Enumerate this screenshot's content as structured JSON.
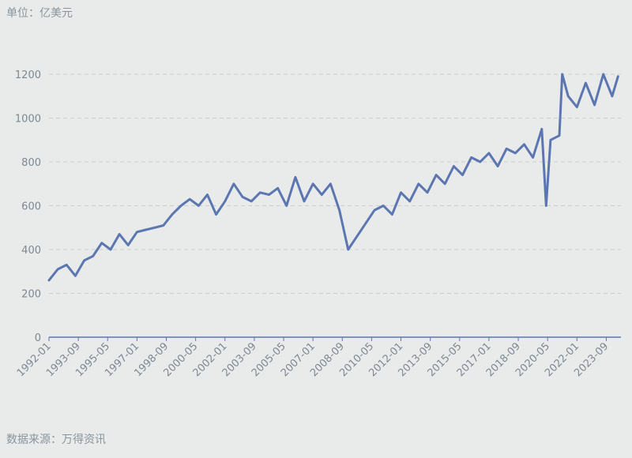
{
  "unit_label": "单位：亿美元",
  "source_label": "数据来源：万得资讯",
  "colors": {
    "line": "#5b76b0",
    "grid": "#c9cfd3",
    "axis": "#5b76b0",
    "text": "#7d8894",
    "background": "#e8ebe9"
  },
  "chart_data": {
    "type": "line",
    "title": "",
    "xlabel": "",
    "ylabel": "",
    "ylim": [
      0,
      1200
    ],
    "yticks": [
      0,
      200,
      400,
      600,
      800,
      1000,
      1200
    ],
    "xlim": [
      "1992-01",
      "2024-07"
    ],
    "xticks": [
      "1992-01",
      "1993-09",
      "1995-05",
      "1997-01",
      "1998-09",
      "2000-05",
      "2002-01",
      "2003-09",
      "2005-05",
      "2007-01",
      "2008-09",
      "2010-05",
      "2012-01",
      "2013-09",
      "2015-05",
      "2017-01",
      "2018-09",
      "2020-05",
      "2022-01",
      "2023-09"
    ],
    "grid": true,
    "series": [
      {
        "x": [
          "1992-01",
          "1992-07",
          "1993-01",
          "1993-07",
          "1994-01",
          "1994-07",
          "1995-01",
          "1995-07",
          "1996-01",
          "1996-07",
          "1997-01",
          "1997-07",
          "1998-01",
          "1998-07",
          "1999-01",
          "1999-07",
          "2000-01",
          "2000-07",
          "2001-01",
          "2001-07",
          "2002-01",
          "2002-07",
          "2003-01",
          "2003-07",
          "2004-01",
          "2004-07",
          "2005-01",
          "2005-07",
          "2006-01",
          "2006-07",
          "2007-01",
          "2007-07",
          "2008-01",
          "2008-07",
          "2009-01",
          "2009-07",
          "2010-01",
          "2010-07",
          "2011-01",
          "2011-07",
          "2012-01",
          "2012-07",
          "2013-01",
          "2013-07",
          "2014-01",
          "2014-07",
          "2015-01",
          "2015-07",
          "2016-01",
          "2016-07",
          "2017-01",
          "2017-07",
          "2018-01",
          "2018-07",
          "2019-01",
          "2019-07",
          "2020-01",
          "2020-04",
          "2020-07",
          "2021-01",
          "2021-03",
          "2021-07",
          "2022-01",
          "2022-07",
          "2023-01",
          "2023-07",
          "2024-01",
          "2024-05"
        ],
        "values": [
          260,
          310,
          330,
          280,
          350,
          370,
          430,
          400,
          470,
          420,
          480,
          490,
          500,
          510,
          560,
          600,
          630,
          600,
          650,
          560,
          620,
          700,
          640,
          620,
          660,
          650,
          680,
          600,
          730,
          620,
          700,
          650,
          700,
          580,
          400,
          460,
          520,
          580,
          600,
          560,
          660,
          620,
          700,
          660,
          740,
          700,
          780,
          740,
          820,
          800,
          840,
          780,
          860,
          840,
          880,
          820,
          950,
          600,
          900,
          920,
          1200,
          1100,
          1050,
          1160,
          1060,
          1200,
          1100,
          1190
        ]
      }
    ]
  }
}
